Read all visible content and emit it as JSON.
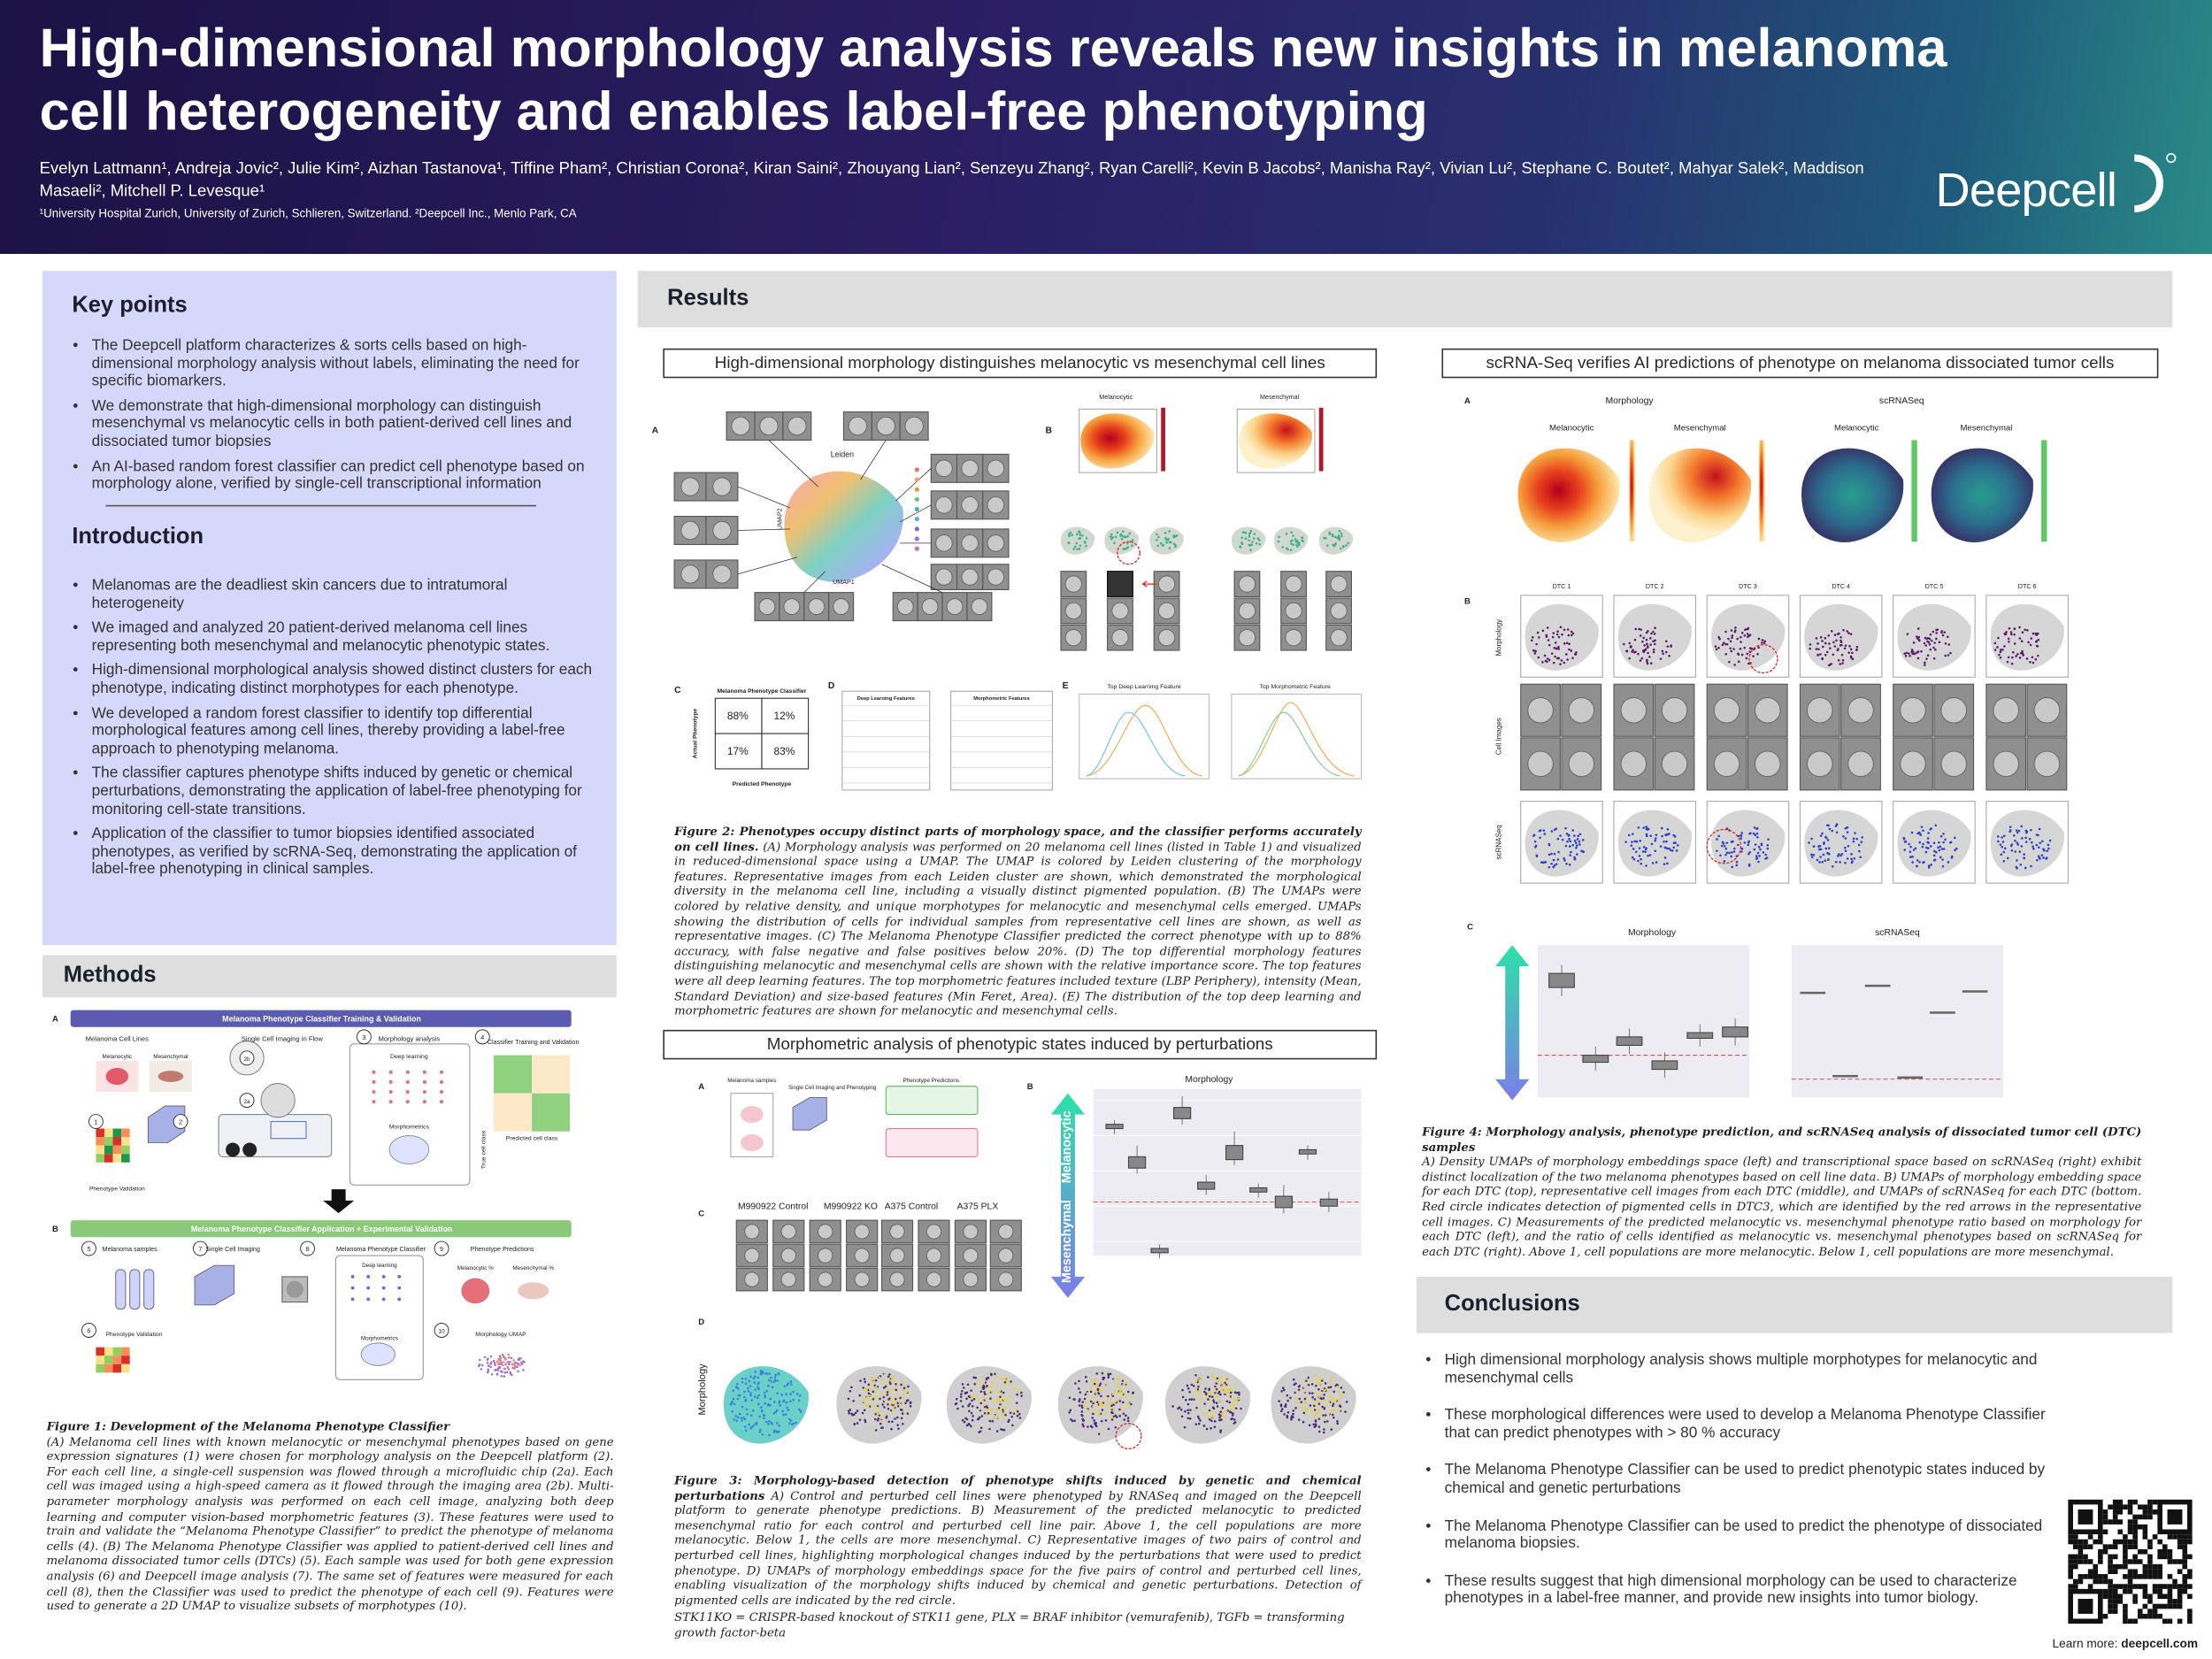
{
  "header": {
    "title": "High-dimensional morphology analysis reveals new insights in melanoma cell heterogeneity and enables label-free phenotyping",
    "authors": "Evelyn Lattmann¹, Andreja Jovic², Julie Kim², Aizhan Tastanova¹, Tiffine Pham², Christian Corona², Kiran Saini², Zhouyang Lian², Senzeyu Zhang², Ryan Carelli², Kevin B Jacobs², Manisha Ray², Vivian Lu², Stephane C. Boutet², Mahyar Salek², Maddison Masaeli², Mitchell P. Levesque¹",
    "affiliations": "¹University Hospital Zurich, University of Zurich, Schlieren, Switzerland. ²Deepcell Inc., Menlo Park, CA",
    "logo": "Deepcell"
  },
  "key_points": {
    "heading": "Key points",
    "bullets": [
      "The Deepcell platform characterizes & sorts cells based on high-dimensional morphology analysis without labels, eliminating the need for specific biomarkers.",
      "We demonstrate that high-dimensional morphology can distinguish mesenchymal vs melanocytic cells in both patient-derived cell lines and dissociated tumor biopsies",
      "An AI-based random forest classifier can predict cell phenotype based on morphology alone, verified by single-cell transcriptional information"
    ]
  },
  "introduction": {
    "heading": "Introduction",
    "bullets": [
      "Melanomas are the deadliest skin cancers due to intratumoral heterogeneity",
      "We imaged and analyzed 20 patient-derived melanoma cell lines representing both mesenchymal and melanocytic phenotypic states.",
      "High-dimensional morphological analysis showed distinct clusters for each phenotype, indicating distinct morphotypes for each phenotype.",
      "We developed a random forest classifier to identify top differential morphological features among cell lines, thereby providing a label-free approach to phenotyping melanoma.",
      "The classifier captures phenotype shifts induced by genetic or chemical perturbations, demonstrating the application of label-free phenotyping for monitoring cell-state transitions.",
      "Application of the classifier to tumor biopsies identified associated phenotypes, as verified by scRNA-Seq, demonstrating the application of label-free phenotyping in clinical samples."
    ]
  },
  "methods": {
    "heading": "Methods",
    "figure_1": {
      "labels": [
        "A",
        "Melanoma Phenotype Classifier Training & Validation",
        "Melanoma Cell Lines",
        "Single Cell Imaging in Flow",
        "Morphology analysis",
        "Classifier Training and Validation",
        "Melanocytic",
        "Mesenchymal",
        "Deep learning",
        "Morphometrics",
        "True cell class",
        "Predicted cell class",
        "Phenotype Validation",
        "B",
        "Melanoma Phenotype Classifier Application + Experimental Validation",
        "Melanoma samples",
        "Single Cell Imaging",
        "Melanoma Phenotype Classifier",
        "Phenotype Predictions",
        "Deep learning",
        "Morphometrics",
        "Melanocytic %",
        "Mesenchymal %",
        "Phenotype Validation",
        "Morphology UMAP",
        "1",
        "2",
        "2a",
        "2b",
        "3",
        "4",
        "5",
        "6",
        "7",
        "8",
        "9",
        "10"
      ],
      "caption": {
        "title": "Figure 1: Development of the Melanoma Phenotype Classifier",
        "text": "(A) Melanoma cell lines with known melanocytic or mesenchymal phenotypes based on gene expression signatures (1) were chosen for morphology analysis on the Deepcell platform (2). For each cell line, a single-cell suspension was flowed through a microfluidic chip (2a). Each cell was imaged using a high-speed camera as it flowed through the imaging area (2b). Multi-parameter morphology analysis was performed on each cell image, analyzing both deep learning and computer vision-based morphometric features (3). These features were used to train and validate the “Melanoma Phenotype Classifier” to predict the phenotype of melanoma cells (4). (B) The Melanoma Phenotype Classifier was applied to patient-derived cell lines and melanoma dissociated tumor cells (DTCs) (5). Each sample was used for both gene expression analysis (6) and Deepcell image analysis (7). The same set of features were measured for each cell (8), then the Classifier was used to predict the phenotype of each cell (9). Features were used to generate a 2D UMAP to visualize subsets of morphotypes (10)."
      }
    }
  },
  "results": {
    "heading": "Results",
    "figure_2": {
      "title": "High-dimensional morphology distinguishes melanocytic vs mesenchymal cell lines",
      "labels": [
        "A",
        "B",
        "C",
        "D",
        "E",
        "Leiden",
        "UMAP1",
        "UMAP2",
        "Melanocytic",
        "Mesenchymal",
        "Melanoma Phenotype Classifier",
        "88%",
        "12%",
        "17%",
        "83%",
        "Actual Phenotype",
        "Predicted Phenotype",
        "Deep Learning Features",
        "Morphometric Features",
        "Top Deep Learning Feature",
        "Top Morphometric Feature"
      ],
      "caption": {
        "title": "Figure 2: Phenotypes occupy distinct parts of morphology space, and the classifier performs accurately on cell lines.",
        "text": "(A) Morphology analysis was performed on 20 melanoma cell lines (listed in Table 1) and visualized in reduced-dimensional space using a UMAP. The UMAP is colored by Leiden clustering of the morphology features. Representative images from each Leiden cluster are shown, which demonstrated the morphological diversity in the melanoma cell line, including a visually distinct pigmented population. (B) The UMAPs were colored by relative density, and unique morphotypes for melanocytic and mesenchymal cells emerged. UMAPs showing the distribution of cells for individual samples from representative cell lines are shown, as well as representative images. (C) The Melanoma Phenotype Classifier predicted the correct phenotype with up to 88% accuracy, with false negative and false positives below 20%. (D) The top differential morphology features distinguishing melanocytic and mesenchymal cells are shown with the relative importance score. The top features were all deep learning features. The top morphometric features included texture (LBP Periphery), intensity (Mean, Standard Deviation) and size-based features (Min Feret, Area). (E) The distribution of the top deep learning and morphometric features are shown for melanocytic and mesenchymal cells."
      }
    },
    "figure_3": {
      "title": "Morphometric analysis of phenotypic states induced by perturbations",
      "labels": [
        "A",
        "B",
        "C",
        "D",
        "Morphology",
        "Melanocytic",
        "Mesenchymal",
        "M990922 Control",
        "M990922 KO",
        "A375 Control",
        "A375 PLX",
        "Morphology",
        "Melanoma samples",
        "Single Cell Imaging and Phenotyping",
        "Phenotype Predictions"
      ],
      "caption": {
        "title": "Figure 3: Morphology-based detection of phenotype shifts induced by genetic and chemical perturbations",
        "text": "A) Control and perturbed cell lines were phenotyped by RNASeq and imaged on the Deepcell platform to generate phenotype predictions. B) Measurement of the predicted melanocytic to predicted mesenchymal ratio for each control and perturbed cell line pair. Above 1, the cell populations are more melanocytic. Below 1, the cells are more mesenchymal. C) Representative images of two pairs of control and perturbed cell lines, highlighting morphological changes induced by the perturbations that were used to predict phenotype. D) UMAPs of morphology embeddings space for the five pairs of control and perturbed cell lines, enabling visualization of the morphology shifts induced by chemical and genetic perturbations. Detection of pigmented cells are indicated by the red circle."
      },
      "footnote": "STK11KO = CRISPR-based knockout of STK11 gene, PLX = BRAF inhibitor  (vemurafenib), TGFb = transforming growth factor-beta"
    },
    "figure_4": {
      "title": "scRNA-Seq verifies AI predictions of phenotype on melanoma dissociated tumor cells",
      "labels": [
        "A",
        "B",
        "C",
        "Morphology",
        "scRNASeq",
        "Melanocytic",
        "Mesenchymal",
        "Melanocytic",
        "Mesenchymal",
        "DTC 1",
        "DTC 2",
        "DTC 3",
        "DTC 4",
        "DTC 5",
        "DTC 6",
        "Morphology",
        "Cell Images",
        "scRNASeq",
        "Morphology",
        "scRNASeq"
      ],
      "caption": {
        "title": "Figure 4: Morphology analysis, phenotype prediction, and scRNASeq analysis of dissociated tumor cell (DTC) samples",
        "text": "A) Density UMAPs of morphology embeddings space (left) and transcriptional space based on scRNASeq (right) exhibit distinct localization of the two melanoma phenotypes based on cell line data. B) UMAPs of morphology embedding space for each DTC (top), representative cell images from each DTC (middle), and UMAPs of scRNASeq for each DTC (bottom. Red circle indicates detection of pigmented cells in DTC3, which are identified by the red arrows in the representative cell images. C) Measurements of the predicted melanocytic vs. mesenchymal phenotype ratio based on morphology for each DTC (left), and the ratio of cells identified as melanocytic vs. mesenchymal phenotypes based on scRNASeq for each DTC (right). Above 1, cell populations are more melanocytic. Below 1, cell populations are more mesenchymal."
      }
    }
  },
  "conclusions": {
    "heading": "Conclusions",
    "bullets": [
      "High dimensional morphology analysis shows multiple morphotypes for melanocytic and mesenchymal cells",
      "These morphological differences were used to develop a Melanoma Phenotype Classifier that can predict phenotypes with > 80 % accuracy",
      "The Melanoma Phenotype Classifier can be used to predict phenotypic states induced by chemical and genetic perturbations",
      "The Melanoma Phenotype Classifier can be used to predict the phenotype of dissociated melanoma biopsies.",
      "These results suggest that high dimensional morphology can be used to characterize phenotypes in a label-free manner, and provide new insights into tumor biology."
    ]
  },
  "footer": {
    "learn_more": "Learn more:",
    "url": "deepcell.com"
  }
}
